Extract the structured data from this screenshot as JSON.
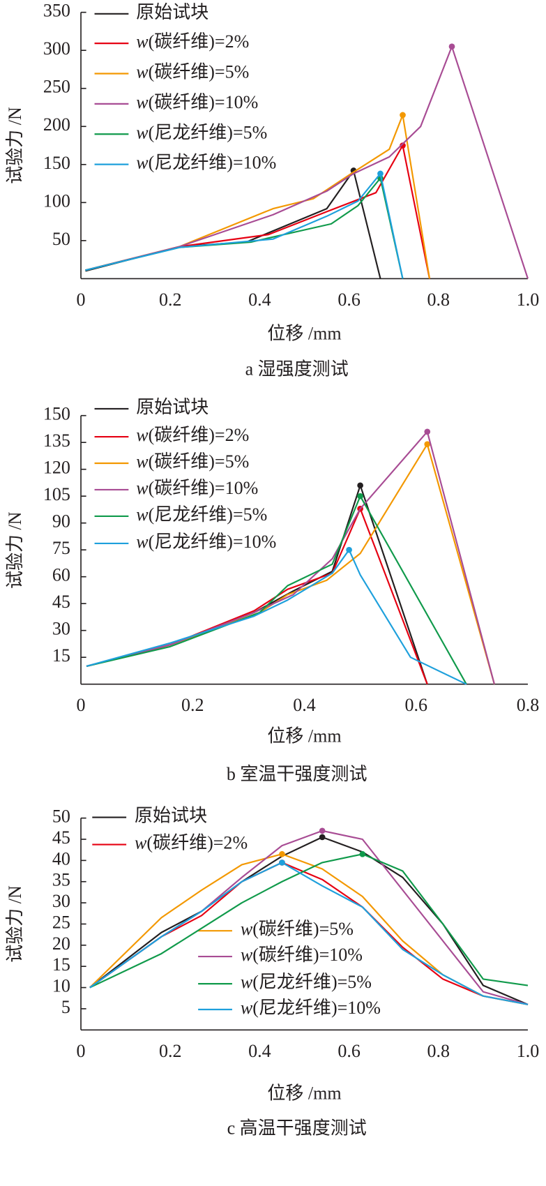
{
  "colors": {
    "原始试块": "#231f20",
    "cf2": "#e60012",
    "cf5": "#f39800",
    "cf10": "#a84c94",
    "ny5": "#109a4b",
    "ny10": "#1ea0dc"
  },
  "chart_data": [
    {
      "type": "line",
      "caption": "a  湿强度测试",
      "xlabel": "位移 /mm",
      "ylabel": "试验力 /N",
      "xlim": [
        0,
        1.0
      ],
      "ylim": [
        0,
        350
      ],
      "xticks": [
        "0",
        "0.2",
        "0.4",
        "0.6",
        "0.8",
        "1.0"
      ],
      "xtick_values": [
        0,
        0.2,
        0.4,
        0.6,
        0.8,
        1.0
      ],
      "yticks": [
        "50",
        "100",
        "150",
        "200",
        "250",
        "300",
        "350"
      ],
      "ytick_values": [
        50,
        100,
        150,
        200,
        250,
        300,
        350
      ],
      "legend_placement": "top-left",
      "series": [
        {
          "name": "原始试块",
          "color_key": "原始试块",
          "peak": 4,
          "x": [
            0.01,
            0.22,
            0.37,
            0.55,
            0.61,
            0.67
          ],
          "y": [
            10,
            42,
            48,
            92,
            142,
            0
          ]
        },
        {
          "name": "w(碳纤维)=2%",
          "color_key": "cf2",
          "peak": 5,
          "x": [
            0.01,
            0.22,
            0.42,
            0.55,
            0.66,
            0.72,
            0.78
          ],
          "y": [
            11,
            42,
            58,
            88,
            113,
            175,
            0
          ]
        },
        {
          "name": "w(碳纤维)=5%",
          "color_key": "cf5",
          "peak": 6,
          "x": [
            0.01,
            0.22,
            0.43,
            0.52,
            0.61,
            0.69,
            0.72,
            0.78
          ],
          "y": [
            11,
            42,
            92,
            105,
            140,
            170,
            215,
            0
          ]
        },
        {
          "name": "w(碳纤维)=10%",
          "color_key": "cf10",
          "peak": 7,
          "x": [
            0.01,
            0.22,
            0.43,
            0.55,
            0.61,
            0.69,
            0.76,
            0.83,
            1.0
          ],
          "y": [
            11,
            42,
            84,
            115,
            138,
            160,
            200,
            305,
            0
          ]
        },
        {
          "name": "w(尼龙纤维)=5%",
          "color_key": "ny5",
          "peak": 5,
          "x": [
            0.01,
            0.22,
            0.38,
            0.56,
            0.62,
            0.67,
            0.72
          ],
          "y": [
            11,
            41,
            48,
            72,
            96,
            132,
            0
          ]
        },
        {
          "name": "w(尼龙纤维)=10%",
          "color_key": "ny10",
          "peak": 5,
          "x": [
            0.01,
            0.22,
            0.43,
            0.55,
            0.62,
            0.67,
            0.72
          ],
          "y": [
            11,
            41,
            52,
            82,
            102,
            138,
            0
          ]
        }
      ]
    },
    {
      "type": "line",
      "caption": "b  室温干强度测试",
      "xlabel": "位移 /mm",
      "ylabel": "试验力 /N",
      "xlim": [
        0,
        0.8
      ],
      "ylim": [
        0,
        150
      ],
      "xticks": [
        "0",
        "0.2",
        "0.4",
        "0.6",
        "0.8"
      ],
      "xtick_values": [
        0,
        0.2,
        0.4,
        0.6,
        0.8
      ],
      "yticks": [
        "15",
        "30",
        "45",
        "60",
        "75",
        "90",
        "105",
        "120",
        "135",
        "150"
      ],
      "ytick_values": [
        15,
        30,
        45,
        60,
        75,
        90,
        105,
        120,
        135,
        150
      ],
      "legend_placement": "top-left",
      "series": [
        {
          "name": "原始试块",
          "color_key": "原始试块",
          "peak": 5,
          "x": [
            0.01,
            0.16,
            0.31,
            0.38,
            0.45,
            0.5,
            0.62
          ],
          "y": [
            10,
            22,
            40,
            52,
            63,
            111,
            0
          ]
        },
        {
          "name": "w(碳纤维)=2%",
          "color_key": "cf2",
          "peak": 5,
          "x": [
            0.01,
            0.16,
            0.31,
            0.37,
            0.45,
            0.5,
            0.62
          ],
          "y": [
            10,
            22,
            41,
            53,
            62,
            98,
            0
          ]
        },
        {
          "name": "w(碳纤维)=5%",
          "color_key": "cf5",
          "peak": 6,
          "x": [
            0.01,
            0.16,
            0.32,
            0.37,
            0.44,
            0.5,
            0.62,
            0.74
          ],
          "y": [
            10,
            22,
            40,
            50,
            58,
            73,
            134,
            0
          ]
        },
        {
          "name": "w(碳纤维)=10%",
          "color_key": "cf10",
          "peak": 6,
          "x": [
            0.01,
            0.16,
            0.31,
            0.38,
            0.45,
            0.5,
            0.62,
            0.74
          ],
          "y": [
            10,
            22,
            40,
            50,
            70,
            98,
            141,
            0
          ]
        },
        {
          "name": "w(尼龙纤维)=5%",
          "color_key": "ny5",
          "peak": 5,
          "x": [
            0.01,
            0.16,
            0.32,
            0.37,
            0.45,
            0.5,
            0.69
          ],
          "y": [
            10,
            21,
            40,
            55,
            67,
            105,
            0
          ]
        },
        {
          "name": "w(尼龙纤维)=10%",
          "color_key": "ny10",
          "peak": 5,
          "x": [
            0.01,
            0.16,
            0.31,
            0.37,
            0.45,
            0.48,
            0.5,
            0.59,
            0.69
          ],
          "y": [
            10,
            23,
            38,
            47,
            62,
            75,
            61,
            15,
            0
          ]
        }
      ]
    },
    {
      "type": "line",
      "caption": "c  高温干强度测试",
      "xlabel": "位移 /mm",
      "ylabel": "试验力 /N",
      "xlim": [
        0,
        1.0
      ],
      "ylim": [
        0,
        50
      ],
      "xticks": [
        "0",
        "0.2",
        "0.4",
        "0.6",
        "0.8",
        "1.0"
      ],
      "xtick_values": [
        0,
        0.2,
        0.4,
        0.6,
        0.8,
        1.0
      ],
      "yticks": [
        "5",
        "10",
        "15",
        "20",
        "25",
        "30",
        "35",
        "40",
        "45",
        "50"
      ],
      "ytick_values": [
        5,
        10,
        15,
        20,
        25,
        30,
        35,
        40,
        45,
        50
      ],
      "legend_placement": "top-left and bottom-center",
      "series": [
        {
          "name": "原始试块",
          "color_key": "原始试块",
          "peak": 5,
          "x": [
            0.02,
            0.18,
            0.27,
            0.36,
            0.45,
            0.54,
            0.63,
            0.72,
            0.81,
            0.9,
            1.0
          ],
          "y": [
            10,
            23,
            28,
            35,
            41,
            45.5,
            42,
            36,
            25,
            10.5,
            6
          ]
        },
        {
          "name": "w(碳纤维)=2%",
          "color_key": "cf2",
          "peak": 4,
          "x": [
            0.02,
            0.18,
            0.27,
            0.36,
            0.45,
            0.54,
            0.63,
            0.72,
            0.81,
            0.9,
            1.0
          ],
          "y": [
            10,
            22,
            27,
            35,
            39.5,
            35.5,
            29,
            19.5,
            12,
            8,
            6
          ]
        },
        {
          "name": "w(碳纤维)=5%",
          "color_key": "cf5",
          "peak": 4,
          "x": [
            0.02,
            0.18,
            0.27,
            0.36,
            0.45,
            0.54,
            0.63,
            0.72,
            0.81,
            0.9,
            1.0
          ],
          "y": [
            10,
            26.5,
            33,
            39,
            41.5,
            38,
            31.5,
            21,
            13,
            8,
            6
          ]
        },
        {
          "name": "w(碳纤维)=10%",
          "color_key": "cf10",
          "peak": 5,
          "x": [
            0.02,
            0.18,
            0.27,
            0.36,
            0.45,
            0.54,
            0.63,
            0.72,
            0.81,
            0.9,
            1.0
          ],
          "y": [
            10,
            22,
            28,
            36,
            43.5,
            47,
            45,
            33,
            21,
            9,
            6
          ]
        },
        {
          "name": "w(尼龙纤维)=5%",
          "color_key": "ny5",
          "peak": 6,
          "x": [
            0.02,
            0.18,
            0.27,
            0.36,
            0.45,
            0.54,
            0.63,
            0.72,
            0.81,
            0.9,
            1.0
          ],
          "y": [
            10,
            18,
            24,
            30,
            35,
            39.5,
            41.5,
            37.5,
            25,
            12,
            10.5
          ]
        },
        {
          "name": "w(尼龙纤维)=10%",
          "color_key": "ny10",
          "peak": 4,
          "x": [
            0.02,
            0.18,
            0.27,
            0.36,
            0.45,
            0.54,
            0.63,
            0.72,
            0.81,
            0.9,
            1.0
          ],
          "y": [
            10,
            22,
            28,
            35,
            39.5,
            34,
            29,
            19,
            13,
            8,
            6
          ]
        }
      ]
    }
  ]
}
